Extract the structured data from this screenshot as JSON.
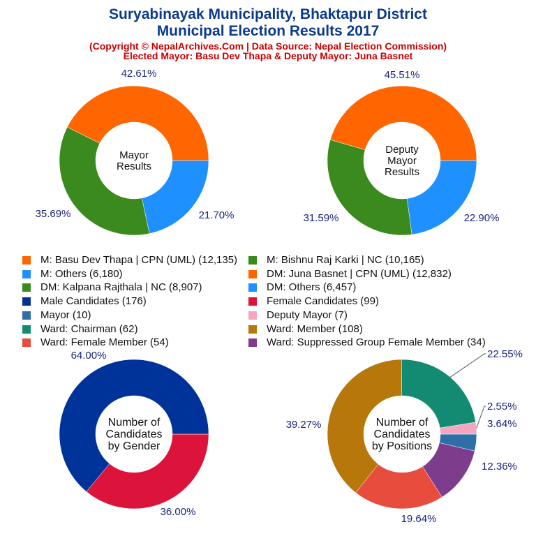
{
  "header": {
    "title_line1": "Suryabinayak Municipality, Bhaktapur District",
    "title_line2": "Municipal Election Results 2017",
    "subtitle_line1": "(Copyright © NepalArchives.Com | Data Source: Nepal Election Commission)",
    "subtitle_line2": "Elected Mayor: Basu Dev Thapa & Deputy Mayor: Juna Basnet"
  },
  "colors": {
    "title": "#0b3a8c",
    "subtitle": "#cc0000",
    "percent_label": "#1a237e"
  },
  "legend": [
    {
      "label": "M: Basu Dev Thapa | CPN (UML) (12,135)",
      "color": "#ff6600"
    },
    {
      "label": "M: Bishnu Raj Karki | NC (10,165)",
      "color": "#3a8a1e"
    },
    {
      "label": "M: Others (6,180)",
      "color": "#1e90ff"
    },
    {
      "label": "DM: Juna Basnet | CPN (UML) (12,832)",
      "color": "#ff6600"
    },
    {
      "label": "DM: Kalpana Rajthala | NC (8,907)",
      "color": "#3a8a1e"
    },
    {
      "label": "DM: Others (6,457)",
      "color": "#1e90ff"
    },
    {
      "label": "Male Candidates (176)",
      "color": "#003399"
    },
    {
      "label": "Female Candidates (99)",
      "color": "#dc143c"
    },
    {
      "label": "Mayor (10)",
      "color": "#2e6fa8"
    },
    {
      "label": "Deputy Mayor (7)",
      "color": "#f4a6c0"
    },
    {
      "label": "Ward: Chairman (62)",
      "color": "#138a72"
    },
    {
      "label": "Ward: Member (108)",
      "color": "#b8770b"
    },
    {
      "label": "Ward: Female Member (54)",
      "color": "#e84c3d"
    },
    {
      "label": "Ward: Suppressed Group Female Member (34)",
      "color": "#7d3c8c"
    }
  ],
  "chart_data": [
    {
      "type": "pie",
      "title": "Mayor Results",
      "center_label": [
        "Mayor",
        "Results"
      ],
      "slices": [
        {
          "name": "M: Basu Dev Thapa | CPN (UML)",
          "value": 12135,
          "percent_label": "42.61%",
          "color": "#ff6600"
        },
        {
          "name": "M: Others",
          "value": 6180,
          "percent_label": "21.70%",
          "color": "#1e90ff"
        },
        {
          "name": "M: Bishnu Raj Karki | NC",
          "value": 10165,
          "percent_label": "35.69%",
          "color": "#3a8a1e"
        }
      ]
    },
    {
      "type": "pie",
      "title": "Deputy Mayor Results",
      "center_label": [
        "Deputy",
        "Mayor",
        "Results"
      ],
      "slices": [
        {
          "name": "DM: Juna Basnet | CPN (UML)",
          "value": 12832,
          "percent_label": "45.51%",
          "color": "#ff6600"
        },
        {
          "name": "DM: Others",
          "value": 6457,
          "percent_label": "22.90%",
          "color": "#1e90ff"
        },
        {
          "name": "DM: Kalpana Rajthala | NC",
          "value": 8907,
          "percent_label": "31.59%",
          "color": "#3a8a1e"
        }
      ]
    },
    {
      "type": "pie",
      "title": "Number of Candidates by Gender",
      "center_label": [
        "Number of",
        "Candidates",
        "by Gender"
      ],
      "slices": [
        {
          "name": "Female Candidates",
          "value": 99,
          "percent_label": "36.00%",
          "color": "#dc143c"
        },
        {
          "name": "Male Candidates",
          "value": 176,
          "percent_label": "64.00%",
          "color": "#003399"
        }
      ]
    },
    {
      "type": "pie",
      "title": "Number of Candidates by Positions",
      "center_label": [
        "Number of",
        "Candidates",
        "by Positions"
      ],
      "slices": [
        {
          "name": "Mayor",
          "value": 10,
          "percent_label": "3.64%",
          "color": "#2e6fa8"
        },
        {
          "name": "Ward: Suppressed Group Female Member",
          "value": 34,
          "percent_label": "12.36%",
          "color": "#7d3c8c"
        },
        {
          "name": "Ward: Female Member",
          "value": 54,
          "percent_label": "19.64%",
          "color": "#e84c3d"
        },
        {
          "name": "Ward: Member",
          "value": 108,
          "percent_label": "39.27%",
          "color": "#b8770b"
        },
        {
          "name": "Ward: Chairman",
          "value": 62,
          "percent_label": "22.55%",
          "color": "#138a72"
        },
        {
          "name": "Deputy Mayor",
          "value": 7,
          "percent_label": "2.55%",
          "color": "#f4a6c0"
        }
      ]
    }
  ]
}
